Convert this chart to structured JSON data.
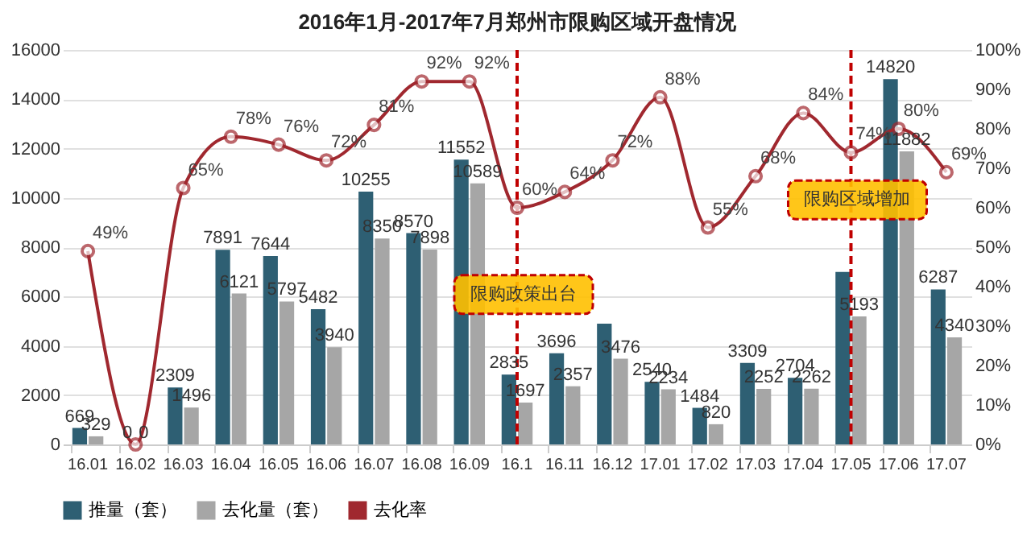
{
  "chart_data": {
    "type": "bar",
    "title": "2016年1月-2017年7月郑州市限购区域开盘情况",
    "categories": [
      "16.01",
      "16.02",
      "16.03",
      "16.04",
      "16.05",
      "16.06",
      "16.07",
      "16.08",
      "16.09",
      "16.1",
      "16.11",
      "16.12",
      "17.01",
      "17.02",
      "17.03",
      "17.04",
      "17.05",
      "17.06",
      "17.07"
    ],
    "series": [
      {
        "name": "推量（套）",
        "color": "#2e5f73",
        "values": [
          669,
          0,
          2309,
          7891,
          7644,
          5482,
          10255,
          8570,
          11552,
          2835,
          3696,
          4900,
          2540,
          1484,
          3309,
          2704,
          7000,
          14820,
          6287
        ],
        "value_labels": [
          "669",
          "0",
          "2309",
          "7891",
          "7644",
          "5482",
          "10255",
          "8570",
          "11552",
          "2835",
          "3696",
          null,
          "2540",
          "1484",
          "3309",
          "2704",
          null,
          "14820",
          "6287"
        ]
      },
      {
        "name": "去化量（套）",
        "color": "#a6a6a6",
        "values": [
          329,
          0,
          1496,
          6121,
          5797,
          3940,
          8350,
          7898,
          10589,
          1697,
          2357,
          3476,
          2234,
          820,
          2252,
          2262,
          5193,
          11882,
          4340
        ],
        "value_labels": [
          "329",
          "0",
          "1496",
          "6121",
          "5797",
          "3940",
          "8350",
          "7898",
          "10589",
          "1697",
          "2357",
          "3476",
          "2234",
          "820",
          "2252",
          "2262",
          "5193",
          "11882",
          "4340"
        ]
      },
      {
        "name": "去化率",
        "type": "line",
        "axis": "y2",
        "color": "#a0282f",
        "marker": "circle",
        "values": [
          49,
          0,
          65,
          78,
          76,
          72,
          81,
          92,
          92,
          60,
          64,
          72,
          88,
          55,
          68,
          84,
          74,
          80,
          69
        ],
        "value_labels": [
          "49%",
          null,
          "65%",
          "78%",
          "76%",
          "72%",
          "81%",
          "92%",
          "92%",
          "60%",
          "64%",
          "72%",
          "88%",
          "55%",
          "68%",
          "84%",
          "74%",
          "80%",
          "69%"
        ]
      }
    ],
    "ylim": [
      0,
      16000
    ],
    "yticks": [
      0,
      2000,
      4000,
      6000,
      8000,
      10000,
      12000,
      14000,
      16000
    ],
    "y2lim": [
      0,
      100
    ],
    "y2ticks": [
      {
        "value": 0,
        "label": "0%"
      },
      {
        "value": 10,
        "label": "10%"
      },
      {
        "value": 20,
        "label": "20%"
      },
      {
        "value": 30,
        "label": "30%"
      },
      {
        "value": 40,
        "label": "40%"
      },
      {
        "value": 50,
        "label": "50%"
      },
      {
        "value": 60,
        "label": "60%"
      },
      {
        "value": 70,
        "label": "70%"
      },
      {
        "value": 80,
        "label": "80%"
      },
      {
        "value": 90,
        "label": "90%"
      },
      {
        "value": 100,
        "label": "100%"
      }
    ],
    "ref_lines": [
      {
        "axis": "x",
        "value": "16.1",
        "label": "限购政策出台",
        "color": "#c00000",
        "line_style": "dashed"
      },
      {
        "axis": "x",
        "value": "17.05",
        "label": "限购区域增加",
        "color": "#c00000",
        "line_style": "dashed"
      }
    ],
    "grid": "y",
    "legend": "bottom"
  }
}
